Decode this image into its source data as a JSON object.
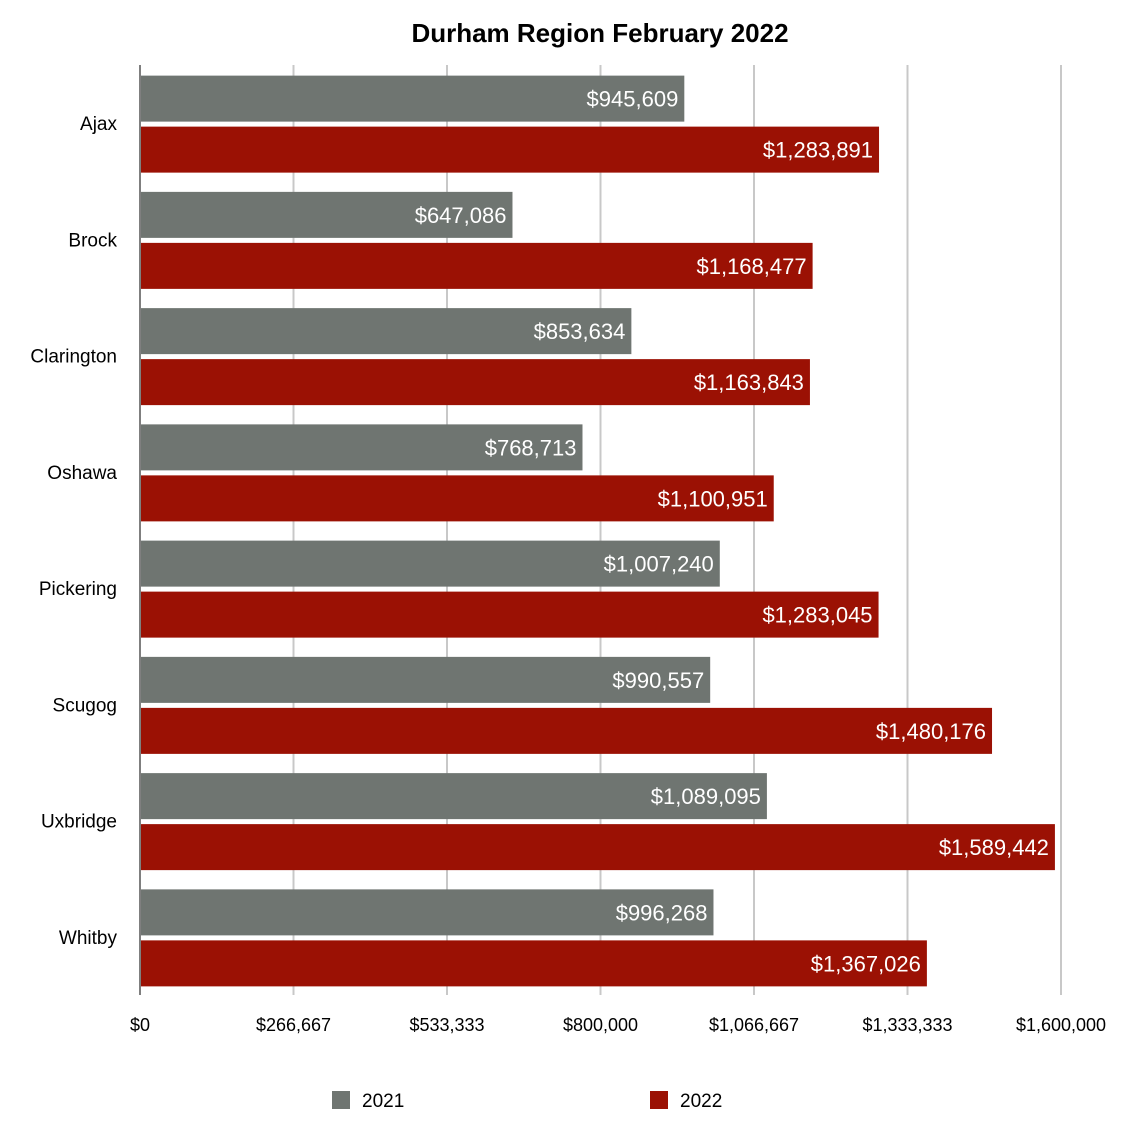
{
  "chart_data": {
    "type": "bar",
    "orientation": "horizontal",
    "title": "Durham Region February 2022",
    "categories": [
      "Ajax",
      "Brock",
      "Clarington",
      "Oshawa",
      "Pickering",
      "Scugog",
      "Uxbridge",
      "Whitby"
    ],
    "series": [
      {
        "name": "2021",
        "color": "#6f7571",
        "values": [
          945609,
          647086,
          853634,
          768713,
          1007240,
          990557,
          1089095,
          996268
        ],
        "labels": [
          "$945,609",
          "$647,086",
          "$853,634",
          "$768,713",
          "$1,007,240",
          "$990,557",
          "$1,089,095",
          "$996,268"
        ]
      },
      {
        "name": "2022",
        "color": "#9b1104",
        "values": [
          1283891,
          1168477,
          1163843,
          1100951,
          1283045,
          1480176,
          1589442,
          1367026
        ],
        "labels": [
          "$1,283,891",
          "$1,168,477",
          "$1,163,843",
          "$1,100,951",
          "$1,283,045",
          "$1,480,176",
          "$1,589,442",
          "$1,367,026"
        ]
      }
    ],
    "xlim": [
      0,
      1600000
    ],
    "ticks": [
      0,
      266667,
      533333,
      800000,
      1066667,
      1333333,
      1600000
    ],
    "tick_labels": [
      "$0",
      "$266,667",
      "$533,333",
      "$800,000",
      "$1,066,667",
      "$1,333,333",
      "$1,600,000"
    ],
    "grid": true,
    "legend": "bottom",
    "data_labels": "inside-end"
  }
}
